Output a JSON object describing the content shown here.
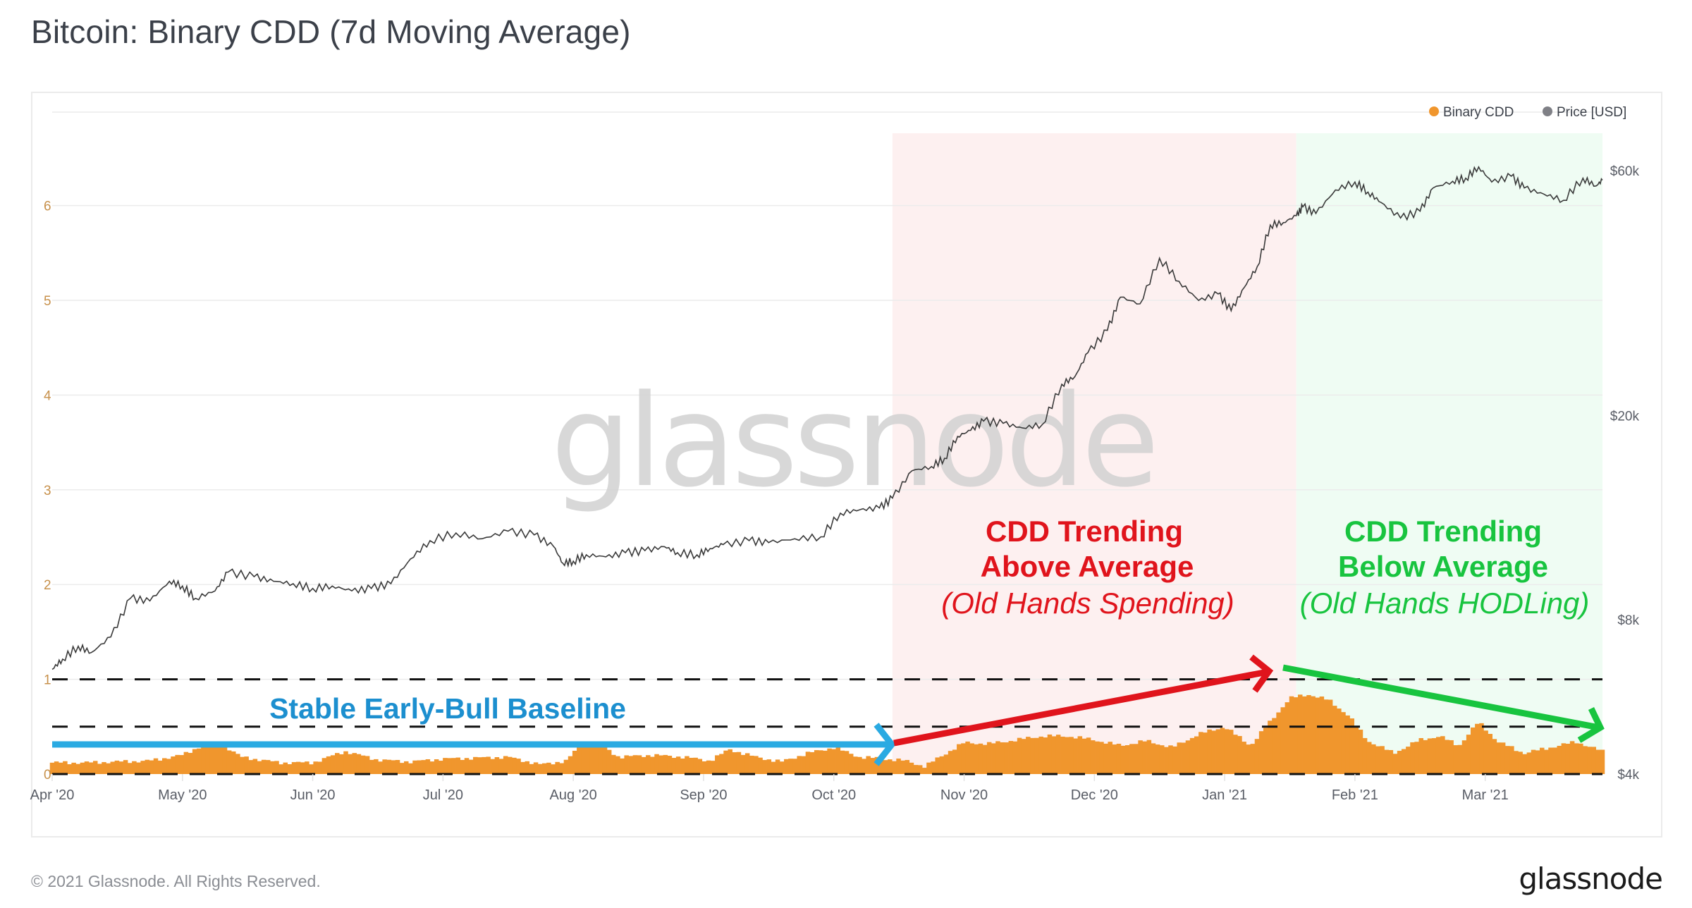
{
  "page": {
    "title": "Bitcoin: Binary CDD (7d Moving Average)",
    "footer_copyright": "© 2021 Glassnode. All Rights Reserved.",
    "footer_logo": "glassnode",
    "watermark": "glassnode"
  },
  "colors": {
    "cdd": "#f0962d",
    "price": "#3a3a3a",
    "legend_price_dot": "#7f8086",
    "left_axis": "#c7904a",
    "right_axis": "#595d66",
    "red_zone": "#fdf0f0",
    "green_zone": "#effcf3",
    "blue_annotation": "#1c8fcf",
    "blue_arrow": "#2aaae2",
    "red_annotation": "#e0141c",
    "green_annotation": "#18c43f"
  },
  "chart_data": {
    "type": "bar+line",
    "title": "Bitcoin: Binary CDD (7d Moving Average)",
    "legend": {
      "placement": "top-right",
      "entries": [
        {
          "name": "Binary CDD",
          "icon": "orange-dot-icon"
        },
        {
          "name": "Price [USD]",
          "icon": "gray-dot-icon"
        }
      ]
    },
    "x_tick_labels": [
      "Apr '20",
      "May '20",
      "Jun '20",
      "Jul '20",
      "Aug '20",
      "Sep '20",
      "Oct '20",
      "Nov '20",
      "Dec '20",
      "Jan '21",
      "Feb '21",
      "Mar '21"
    ],
    "x_range_months": [
      0,
      11.9
    ],
    "left_axis": {
      "label": "Binary CDD",
      "ticks": [
        "0",
        "1",
        "2",
        "3",
        "4",
        "5",
        "6"
      ],
      "ylim": [
        0,
        6.4
      ]
    },
    "right_axis": {
      "label": "Price [USD]",
      "scale": "log",
      "ticks": [
        "$4k",
        "$8k",
        "$20k",
        "$60k"
      ],
      "tick_values": [
        4000,
        8000,
        20000,
        60000
      ],
      "ylim": [
        4000,
        72000
      ]
    },
    "reference_lines": [
      {
        "value": 0,
        "style": "dashed"
      },
      {
        "value": 0.5,
        "style": "dashed"
      },
      {
        "value": 1.0,
        "style": "dashed"
      }
    ],
    "shaded_regions": [
      {
        "from_month": 6.45,
        "to_month": 9.55,
        "label": "red-zone"
      },
      {
        "from_month": 9.55,
        "to_month": 11.9,
        "label": "green-zone"
      }
    ],
    "series": [
      {
        "name": "Binary CDD",
        "kind": "bar",
        "x_months": [
          0,
          0.25,
          0.5,
          0.75,
          1,
          1.15,
          1.3,
          1.45,
          1.6,
          1.75,
          2,
          2.25,
          2.5,
          2.75,
          3,
          3.25,
          3.5,
          3.75,
          3.95,
          4.05,
          4.2,
          4.35,
          4.6,
          4.85,
          5.05,
          5.2,
          5.4,
          5.6,
          5.8,
          6.0,
          6.2,
          6.4,
          6.55,
          6.7,
          6.9,
          7.0,
          7.2,
          7.4,
          7.6,
          7.8,
          8.0,
          8.2,
          8.4,
          8.6,
          8.8,
          9.0,
          9.2,
          9.35,
          9.5,
          9.65,
          9.8,
          9.95,
          10.1,
          10.3,
          10.5,
          10.65,
          10.8,
          10.95,
          11.1,
          11.3,
          11.5,
          11.7,
          11.9
        ],
        "values": [
          0.12,
          0.12,
          0.13,
          0.14,
          0.2,
          0.3,
          0.32,
          0.18,
          0.15,
          0.12,
          0.12,
          0.24,
          0.15,
          0.13,
          0.16,
          0.17,
          0.18,
          0.1,
          0.14,
          0.3,
          0.32,
          0.18,
          0.2,
          0.18,
          0.14,
          0.26,
          0.18,
          0.13,
          0.22,
          0.28,
          0.18,
          0.16,
          0.14,
          0.08,
          0.25,
          0.33,
          0.32,
          0.36,
          0.4,
          0.4,
          0.36,
          0.3,
          0.35,
          0.28,
          0.42,
          0.5,
          0.3,
          0.55,
          0.8,
          0.84,
          0.78,
          0.62,
          0.35,
          0.22,
          0.36,
          0.4,
          0.3,
          0.55,
          0.34,
          0.22,
          0.28,
          0.34,
          0.24
        ]
      },
      {
        "name": "Price [USD]",
        "kind": "line",
        "x_months": [
          0,
          0.08,
          0.2,
          0.3,
          0.45,
          0.6,
          0.75,
          0.9,
          1.0,
          1.1,
          1.25,
          1.35,
          1.55,
          1.7,
          1.85,
          2.0,
          2.15,
          2.3,
          2.45,
          2.6,
          2.75,
          2.9,
          3.1,
          3.3,
          3.5,
          3.7,
          3.85,
          3.92,
          4.0,
          4.1,
          4.25,
          4.4,
          4.55,
          4.7,
          4.8,
          4.95,
          5.05,
          5.15,
          5.35,
          5.5,
          5.7,
          5.9,
          6.05,
          6.2,
          6.35,
          6.45,
          6.6,
          6.75,
          6.85,
          6.95,
          7.05,
          7.15,
          7.3,
          7.45,
          7.6,
          7.75,
          7.85,
          7.95,
          8.1,
          8.2,
          8.35,
          8.5,
          8.65,
          8.8,
          8.95,
          9.05,
          9.15,
          9.25,
          9.35,
          9.45,
          9.55,
          9.6,
          9.7,
          9.85,
          10.0,
          10.1,
          10.2,
          10.35,
          10.5,
          10.6,
          10.75,
          10.85,
          10.95,
          11.05,
          11.2,
          11.3,
          11.45,
          11.6,
          11.75,
          11.85,
          11.9
        ],
        "values": [
          6400,
          6700,
          7100,
          6900,
          7400,
          8800,
          8700,
          9500,
          9300,
          8800,
          9100,
          9900,
          9700,
          9500,
          9400,
          9200,
          9300,
          9100,
          9200,
          9400,
          10500,
          11400,
          11800,
          11500,
          11900,
          11700,
          11100,
          10300,
          10400,
          10700,
          10600,
          10800,
          10900,
          11100,
          10800,
          10700,
          11000,
          11200,
          11400,
          11300,
          11500,
          11600,
          12900,
          13100,
          13200,
          13800,
          15600,
          15900,
          16500,
          18200,
          18700,
          19500,
          19300,
          18900,
          19200,
          23000,
          23800,
          26500,
          29300,
          34000,
          33000,
          40500,
          36500,
          33500,
          34500,
          32000,
          35500,
          39000,
          47000,
          47500,
          49000,
          51000,
          49500,
          55000,
          57000,
          54500,
          52000,
          48500,
          50000,
          55500,
          57200,
          58000,
          61000,
          57000,
          58500,
          55500,
          54000,
          52500,
          58000,
          56000,
          57500
        ]
      }
    ],
    "annotations": [
      {
        "text": "Stable Early-Bull Baseline",
        "color": "blue",
        "arrow": "horizontal"
      },
      {
        "text_line1": "CDD Trending",
        "text_line2": "Above Average",
        "text_line3": "(Old Hands Spending)",
        "color": "red",
        "arrow": "up-right"
      },
      {
        "text_line1": "CDD Trending",
        "text_line2": "Below Average",
        "text_line3": "(Old Hands HODLing)",
        "color": "green",
        "arrow": "down-right"
      }
    ]
  }
}
